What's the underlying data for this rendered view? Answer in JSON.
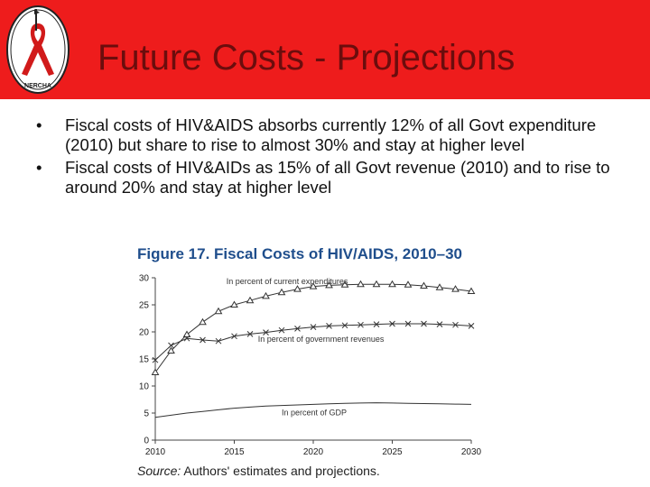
{
  "slide": {
    "title": "Future Costs - Projections",
    "bullets": [
      "Fiscal costs of HIV&AIDS absorbs currently 12% of all Govt expenditure (2010) but share to rise to almost 30% and stay at higher level",
      "Fiscal costs of HIV&AIDs as 15% of all Govt revenue (2010) and to rise to around 20% and stay at higher level"
    ],
    "bullet_glyph": "•",
    "logo_text": "NERCHA",
    "header_color": "#ee1c1c",
    "title_color": "#6b0d0d"
  },
  "figure": {
    "title": "Figure 17. Fiscal Costs of HIV/AIDS, 2010–30",
    "source_label": "Source:",
    "source_text": "Authors' estimates and projections."
  },
  "chart_data": {
    "type": "line",
    "x_ticks": [
      "2010",
      "2015",
      "2020",
      "2025",
      "2030"
    ],
    "y_ticks": [
      "0",
      "5",
      "10",
      "15",
      "20",
      "25",
      "30"
    ],
    "xlim": [
      2010,
      2030
    ],
    "ylim": [
      0,
      30
    ],
    "grid": false,
    "series": [
      {
        "name": "In percent of current expenditures",
        "marker": "triangle",
        "x": [
          2010,
          2011,
          2012,
          2013,
          2014,
          2015,
          2016,
          2017,
          2018,
          2019,
          2020,
          2021,
          2022,
          2023,
          2024,
          2025,
          2026,
          2027,
          2028,
          2029,
          2030
        ],
        "y": [
          12.5,
          16.5,
          19.5,
          21.8,
          23.8,
          25.0,
          25.8,
          26.6,
          27.3,
          27.9,
          28.4,
          28.6,
          28.7,
          28.8,
          28.8,
          28.8,
          28.7,
          28.5,
          28.2,
          27.9,
          27.5
        ]
      },
      {
        "name": "In percent of government revenues",
        "marker": "x",
        "x": [
          2010,
          2011,
          2012,
          2013,
          2014,
          2015,
          2016,
          2017,
          2018,
          2019,
          2020,
          2021,
          2022,
          2023,
          2024,
          2025,
          2026,
          2027,
          2028,
          2029,
          2030
        ],
        "y": [
          14.8,
          17.5,
          18.8,
          18.5,
          18.3,
          19.2,
          19.6,
          19.9,
          20.3,
          20.6,
          20.9,
          21.1,
          21.2,
          21.3,
          21.4,
          21.5,
          21.5,
          21.5,
          21.4,
          21.3,
          21.1
        ]
      },
      {
        "name": "In percent of GDP",
        "marker": "none",
        "x": [
          2010,
          2011,
          2012,
          2013,
          2014,
          2015,
          2016,
          2017,
          2018,
          2019,
          2020,
          2021,
          2022,
          2023,
          2024,
          2025,
          2026,
          2027,
          2028,
          2029,
          2030
        ],
        "y": [
          4.2,
          4.6,
          5.0,
          5.3,
          5.6,
          5.9,
          6.1,
          6.3,
          6.4,
          6.5,
          6.6,
          6.7,
          6.8,
          6.85,
          6.9,
          6.85,
          6.8,
          6.75,
          6.7,
          6.65,
          6.6
        ]
      }
    ]
  }
}
